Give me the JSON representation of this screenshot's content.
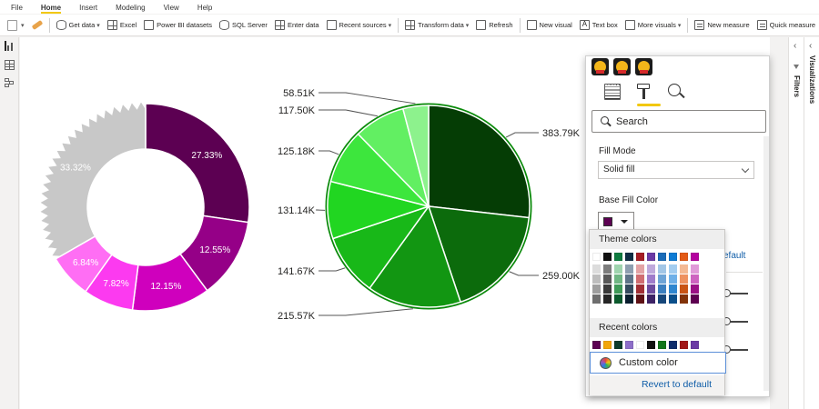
{
  "menu": {
    "tabs": [
      "File",
      "Home",
      "Insert",
      "Modeling",
      "View",
      "Help"
    ],
    "active": "Home"
  },
  "ribbon": {
    "get_data": "Get data",
    "excel": "Excel",
    "pbi_datasets": "Power BI datasets",
    "sql_server": "SQL Server",
    "enter_data": "Enter data",
    "recent_sources": "Recent sources",
    "transform_data": "Transform data",
    "refresh": "Refresh",
    "new_visual": "New visual",
    "text_box": "Text box",
    "more_visuals": "More visuals",
    "new_measure": "New measure",
    "quick_measure": "Quick measure"
  },
  "side_panes": {
    "filters": "Filters",
    "visualizations": "Visualizations"
  },
  "chart_data": [
    {
      "type": "pie",
      "style": "donut",
      "slice_labels": [
        "27.33%",
        "12.55%",
        "12.15%",
        "7.82%",
        "6.84%",
        "33.32%"
      ],
      "values": [
        27.33,
        12.55,
        12.15,
        7.82,
        6.84,
        33.32
      ],
      "colors": [
        "#5c0052",
        "#950087",
        "#cf00bd",
        "#fc3af0",
        "#ff6ef4",
        "#c8c8c8"
      ]
    },
    {
      "type": "pie",
      "slice_labels": [
        "383.79K",
        "259.00K",
        "215.57K",
        "141.67K",
        "131.14K",
        "125.18K",
        "117.50K",
        "58.51K"
      ],
      "values": [
        383.79,
        259.0,
        215.57,
        141.67,
        131.14,
        125.18,
        117.5,
        58.51
      ],
      "colors": [
        "#053d05",
        "#0c6b0c",
        "#129612",
        "#18b818",
        "#21d621",
        "#3de63d",
        "#62ef62",
        "#8df28d"
      ]
    }
  ],
  "format_pane": {
    "search_placeholder": "Search",
    "fill_mode_label": "Fill Mode",
    "fill_mode_value": "Solid fill",
    "base_fill_label": "Base Fill Color",
    "base_fill_color": "#5c0052",
    "bg_revert_label": "efault",
    "palette": {
      "theme_label": "Theme colors",
      "theme_top": [
        "#ffffff",
        "#111111",
        "#107c41",
        "#0f2d44",
        "#a51d24",
        "#6b3aa5",
        "#1a6bb8",
        "#0f7bd4",
        "#e35a15",
        "#b4009e"
      ],
      "theme_cols": [
        [
          "#dcdcdc",
          "#bdbdbd",
          "#9e9e9e",
          "#6e6e6e"
        ],
        [
          "#7d7d7d",
          "#595959",
          "#3b3b3b",
          "#262626"
        ],
        [
          "#9fd4ae",
          "#6fb683",
          "#3f9a58",
          "#0c5a2d"
        ],
        [
          "#8e9fb0",
          "#5e7488",
          "#344a5e",
          "#0a1e2e"
        ],
        [
          "#e3a3a5",
          "#d06d71",
          "#a12f35",
          "#5e1115"
        ],
        [
          "#bfa9dc",
          "#9f7ccb",
          "#6d4b9e",
          "#3d2366"
        ],
        [
          "#a2c6e6",
          "#6ea4d6",
          "#3b7fbf",
          "#17477a"
        ],
        [
          "#a3cdf0",
          "#6fb0e8",
          "#2f86cf",
          "#0b4f8a"
        ],
        [
          "#f4b993",
          "#ee9260",
          "#c95414",
          "#823309"
        ],
        [
          "#e09ad8",
          "#ce63c0",
          "#9b1085",
          "#5d0050"
        ]
      ],
      "recent_label": "Recent colors",
      "recent": [
        "#5c0052",
        "#f2a60d",
        "#0c3b2b",
        "#8d6ec8",
        "#ffffff",
        "#111111",
        "#12761c",
        "#0f2d6b",
        "#a21818",
        "#6b3aa5"
      ],
      "custom_label": "Custom color",
      "revert_label": "Revert to default"
    }
  }
}
